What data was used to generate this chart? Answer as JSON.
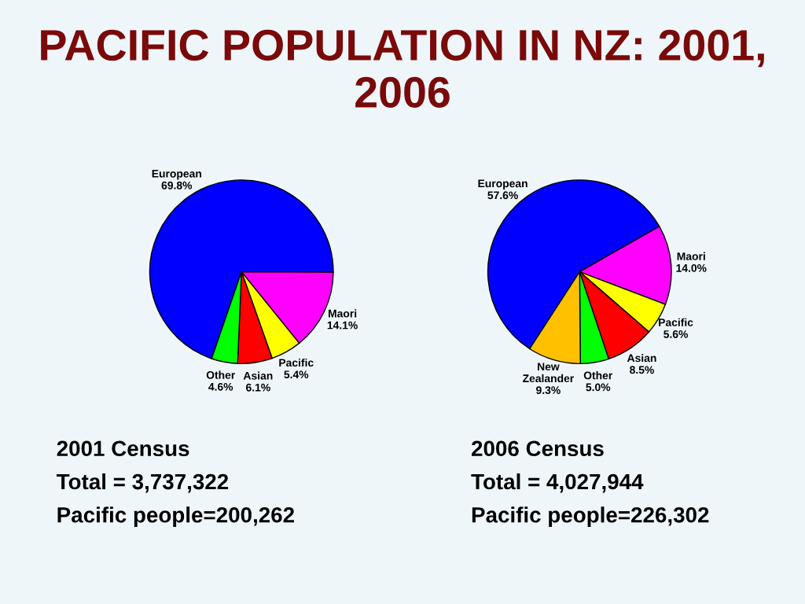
{
  "chart_data": [
    {
      "type": "pie",
      "title": "PACIFIC POPULATION IN NZ: 2001, 2006",
      "categories": [
        "European",
        "Maori",
        "Pacific",
        "Asian",
        "Other"
      ],
      "values": [
        69.8,
        14.1,
        5.4,
        6.1,
        4.6
      ],
      "colors": [
        "#0000ff",
        "#ff00ff",
        "#ffff00",
        "#ff0000",
        "#00ff00"
      ],
      "value_labels": [
        "69.8%",
        "14.1%",
        "5.4%",
        "6.1%",
        "4.6%"
      ],
      "annotations": [
        "2001 Census",
        "Total = 3,737,322",
        "Pacific people=200,262"
      ]
    },
    {
      "type": "pie",
      "categories": [
        "European",
        "Maori",
        "Pacific",
        "Asian",
        "Other",
        "New Zealander"
      ],
      "values": [
        57.6,
        14.0,
        5.6,
        8.5,
        5.0,
        9.3
      ],
      "colors": [
        "#0000ff",
        "#ff00ff",
        "#ffff00",
        "#ff0000",
        "#00ff00",
        "#ffc000"
      ],
      "value_labels": [
        "57.6%",
        "14.0%",
        "5.6%",
        "8.5%",
        "5.0%",
        "9.3%"
      ],
      "annotations": [
        "2006 Census",
        "Total = 4,027,944",
        "Pacific people=226,302"
      ]
    }
  ]
}
